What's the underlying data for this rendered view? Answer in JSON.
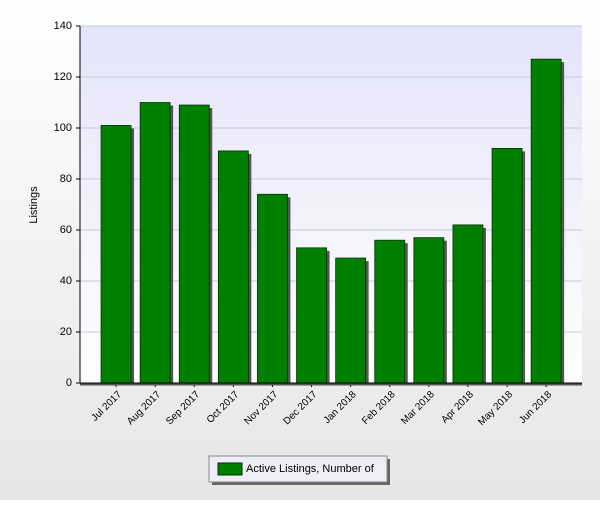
{
  "chart_data": {
    "type": "bar",
    "y_label": "Listings",
    "categories": [
      "Jul 2017",
      "Aug 2017",
      "Sep 2017",
      "Oct 2017",
      "Nov 2017",
      "Dec 2017",
      "Jan 2018",
      "Feb 2018",
      "Mar 2018",
      "Apr 2018",
      "May 2018",
      "Jun 2018"
    ],
    "series": [
      {
        "name": "Active Listings, Number of",
        "color": "#007f00",
        "values": [
          101,
          110,
          109,
          91,
          74,
          53,
          49,
          56,
          57,
          62,
          92,
          127
        ]
      }
    ],
    "ylim": [
      0,
      140
    ],
    "yticks": [
      0,
      20,
      40,
      60,
      80,
      100,
      120,
      140
    ],
    "grid": true,
    "legend": "bottom"
  }
}
